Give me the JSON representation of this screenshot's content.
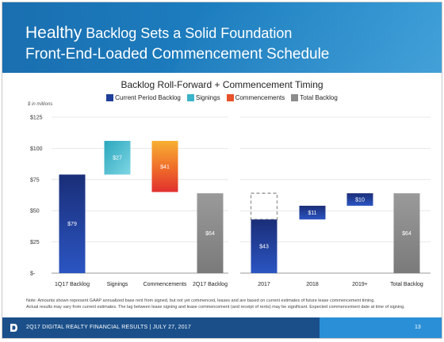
{
  "header": {
    "title_line1_big": "Healthy",
    "title_line1_rest": " Backlog Sets a Solid Foundation",
    "title_line2": "Front-End-Loaded Commencement Schedule"
  },
  "legend": [
    {
      "label": "Current Period Backlog",
      "color": "#1f3f9a"
    },
    {
      "label": "Signings",
      "color": "#3bb3c9"
    },
    {
      "label": "Commencements",
      "color": "#e8502a"
    },
    {
      "label": "Total Backlog",
      "color": "#8c8c8c"
    }
  ],
  "chart_data": {
    "type": "bar",
    "title": "Backlog Roll-Forward + Commencement Timing",
    "units_note": "$ in millions",
    "yticks": [
      "$125",
      "$100",
      "$75",
      "$50",
      "$25",
      "$-"
    ],
    "ylim": [
      0,
      125
    ],
    "grid": true,
    "legend_placement": "top",
    "left_panel": {
      "categories": [
        "1Q17 Backlog",
        "Signings",
        "Commencements",
        "2Q17 Backlog"
      ],
      "bars": [
        {
          "start": 0,
          "end": 79,
          "label": "$79",
          "kind": "current"
        },
        {
          "start": 79,
          "end": 106,
          "label": "$27",
          "kind": "signings"
        },
        {
          "start": 65,
          "end": 106,
          "label": "$41",
          "kind": "commencements"
        },
        {
          "start": 0,
          "end": 64,
          "label": "$64",
          "kind": "total"
        }
      ]
    },
    "right_panel": {
      "categories": [
        "2017",
        "2018",
        "2019+",
        "Total Backlog"
      ],
      "bars": [
        {
          "start": 0,
          "end": 43,
          "label": "$43",
          "kind": "current",
          "outline_to": 64
        },
        {
          "start": 43,
          "end": 54,
          "label": "$11",
          "kind": "current"
        },
        {
          "start": 54,
          "end": 64,
          "label": "$10",
          "kind": "current"
        },
        {
          "start": 0,
          "end": 64,
          "label": "$64",
          "kind": "total"
        }
      ]
    }
  },
  "footnote": {
    "line1": "Note:  Amounts shown represent GAAP annualized base rent from signed, but not yet commenced, leases and are based on current estimates of future lease commencement timing.",
    "line2": "Actual results may vary from current estimates.  The lag between lease signing and lease commencement (and receipt of rents) may be significant.  Expected commencement date at time of signing."
  },
  "footer": {
    "text": "2Q17 DIGITAL REALTY FINANCIAL RESULTS  |  JULY 27, 2017",
    "page": "13"
  }
}
